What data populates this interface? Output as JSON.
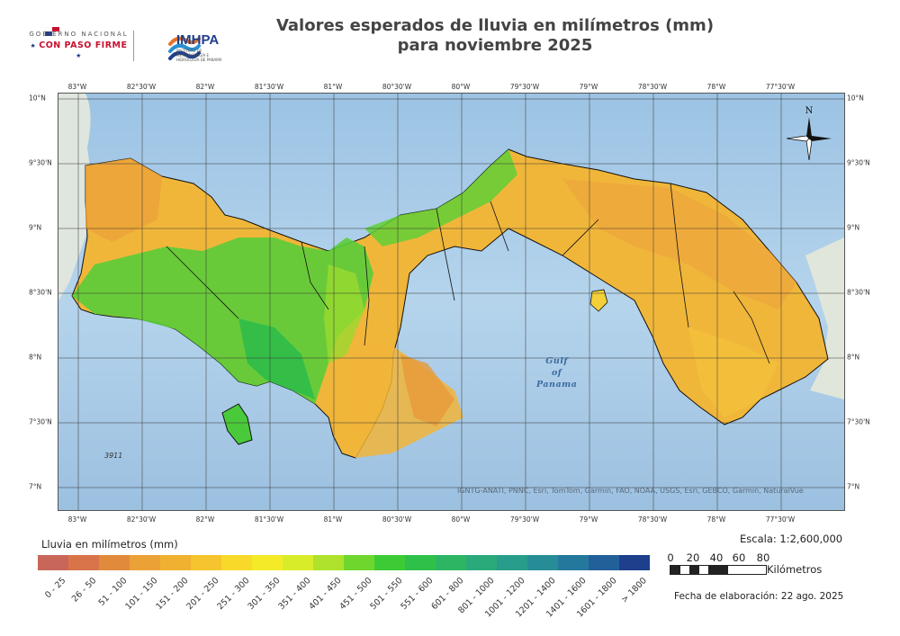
{
  "header": {
    "gov_logo_line1": "GOBIERNO NACIONAL",
    "gov_logo_slogan": "CON PASO FIRME",
    "imhpa_logo": "IMHPA",
    "imhpa_sub": "INSTITUTO DE METEOROLOGÍA E HIDROLOGÍA DE PANAMÁ",
    "title_line1": "Valores esperados de lluvia en milímetros (mm)",
    "title_line2": "para noviembre 2025"
  },
  "map": {
    "longitude_ticks": [
      "83°W",
      "82°30'W",
      "82°W",
      "81°30'W",
      "81°W",
      "80°30'W",
      "80°W",
      "79°30'W",
      "79°W",
      "78°30'W",
      "78°W",
      "77°30'W"
    ],
    "latitude_ticks": [
      "10°N",
      "9°30'N",
      "9°N",
      "8°30'N",
      "8°N",
      "7°30'N",
      "7°N"
    ],
    "water_label_line1": "Gulf",
    "water_label_line2": "of",
    "water_label_line3": "Panama",
    "depth_label": "3911",
    "credit": "IGNTG-ANATI, PNNC, Esri, TomTom, Garmin, FAO, NOAA, USGS, Esri, GEBCO, Garmin, NaturalVue",
    "compass_label": "N",
    "colors": {
      "sea": "#a9cbe6",
      "land_other": "#dfe6df",
      "border": "#111111"
    }
  },
  "legend": {
    "title": "Lluvia en milímetros (mm)",
    "classes": [
      {
        "label": "0 - 25",
        "color": "#c8665a"
      },
      {
        "label": "26 - 50",
        "color": "#d9744a"
      },
      {
        "label": "51 - 100",
        "color": "#e28a3c"
      },
      {
        "label": "101 - 150",
        "color": "#eba136"
      },
      {
        "label": "151 - 200",
        "color": "#f0b130"
      },
      {
        "label": "201 - 250",
        "color": "#f5c42e"
      },
      {
        "label": "251 - 300",
        "color": "#f8d92a"
      },
      {
        "label": "301 - 350",
        "color": "#f5ea28"
      },
      {
        "label": "351 - 400",
        "color": "#d8ec2a"
      },
      {
        "label": "401 - 450",
        "color": "#aee22c"
      },
      {
        "label": "451 - 500",
        "color": "#6fd62e"
      },
      {
        "label": "501 - 550",
        "color": "#3ccb34"
      },
      {
        "label": "551 - 600",
        "color": "#2fc04a"
      },
      {
        "label": "601 - 800",
        "color": "#2db563"
      },
      {
        "label": "801 - 1000",
        "color": "#2aaa7a"
      },
      {
        "label": "1001 - 1200",
        "color": "#289d8b"
      },
      {
        "label": "1201 - 1400",
        "color": "#268d96"
      },
      {
        "label": "1401 - 1600",
        "color": "#24789c"
      },
      {
        "label": "1601 - 1800",
        "color": "#22609a"
      },
      {
        "label": "> 1800",
        "color": "#1d3f8c"
      }
    ]
  },
  "scale": {
    "text": "Escala: 1:2,600,000",
    "numbers": [
      "0",
      "20",
      "40",
      "60",
      "80"
    ],
    "unit": "Kilómetros"
  },
  "footer": {
    "date": "Fecha de elaboración: 22 ago. 2025"
  }
}
